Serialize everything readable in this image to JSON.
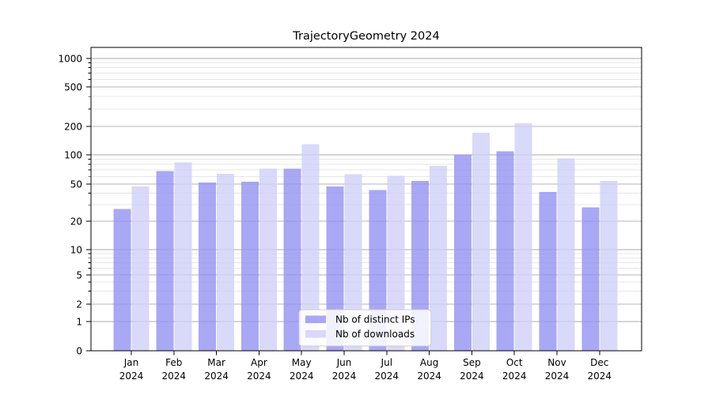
{
  "figure": {
    "title": "TrajectoryGeometry 2024"
  },
  "chart_data": {
    "type": "bar",
    "title": "TrajectoryGeometry 2024",
    "categories": [
      "Jan",
      "Feb",
      "Mar",
      "Apr",
      "May",
      "Jun",
      "Jul",
      "Aug",
      "Sep",
      "Oct",
      "Nov",
      "Dec"
    ],
    "category_year": "2024",
    "series": [
      {
        "name": "Nb of distinct IPs",
        "color": "#9292f2",
        "values": [
          27,
          68,
          52,
          53,
          72,
          47,
          43,
          54,
          101,
          109,
          41,
          28
        ]
      },
      {
        "name": "Nb of downloads",
        "color": "#d0d0f9",
        "values": [
          47,
          84,
          64,
          72,
          130,
          63,
          61,
          77,
          172,
          215,
          92,
          54
        ]
      }
    ],
    "xlabel": "",
    "ylabel": "",
    "y_scale": "symlog",
    "y_ticks": [
      0,
      1,
      2,
      5,
      10,
      20,
      50,
      100,
      200,
      500,
      1000
    ],
    "y_minor_ticks": [
      3,
      4,
      6,
      7,
      8,
      9,
      30,
      40,
      60,
      70,
      80,
      90,
      300,
      400,
      600,
      700,
      800,
      900
    ],
    "ylim": [
      0,
      1300
    ],
    "grid": true,
    "legend_position": "bottom-center",
    "colors": {
      "major_grid": "#b5b5b5",
      "minor_grid": "#e7e7e7",
      "spine": "#000000",
      "legend_border": "#cccccc",
      "legend_bg": "#ffffff"
    }
  }
}
